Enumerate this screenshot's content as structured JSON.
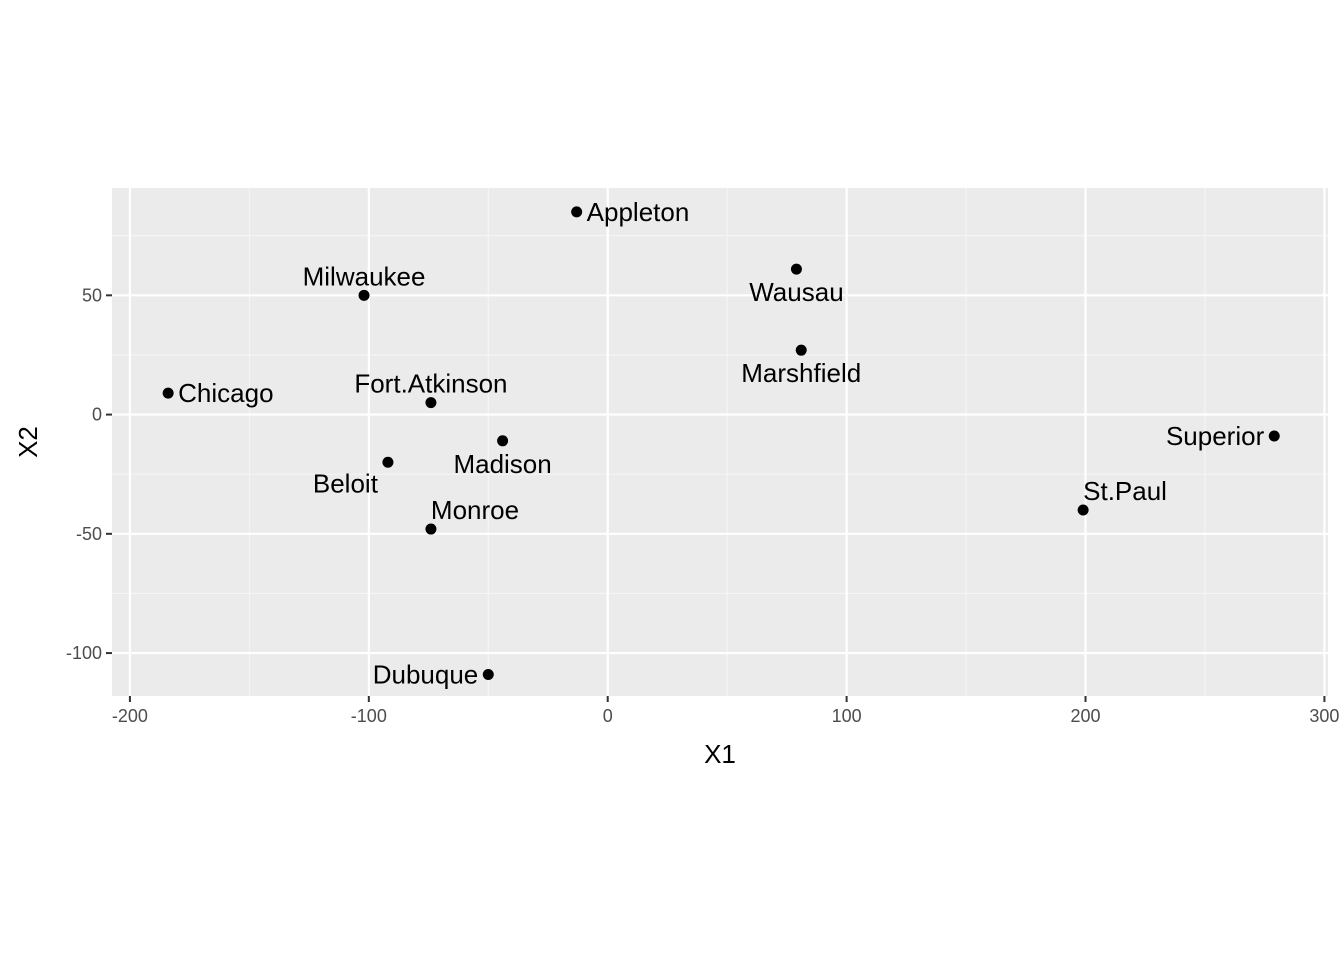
{
  "chart_data": {
    "type": "scatter",
    "title": "",
    "xlabel": "X1",
    "ylabel": "X2",
    "xlim": [
      -207.5,
      301.5
    ],
    "ylim": [
      -118,
      95
    ],
    "x_ticks": [
      -200,
      -100,
      0,
      100,
      200,
      300
    ],
    "x_tick_labels": [
      "-200",
      "-100",
      "0",
      "100",
      "200",
      "300"
    ],
    "y_ticks": [
      -100,
      -50,
      0,
      50
    ],
    "y_tick_labels": [
      "-100",
      "-50",
      "0",
      "50"
    ],
    "grid": true,
    "legend": "none",
    "colors": {
      "panel_background": "#EBEBEB",
      "grid_major": "#FFFFFF",
      "grid_minor": "#F5F5F5",
      "point": "#000000",
      "tick_text": "#4D4D4D",
      "axis_tick": "#333333"
    },
    "points": [
      {
        "label": "Appleton",
        "x": -13,
        "y": 85,
        "anchor": "start",
        "pos": "right"
      },
      {
        "label": "Milwaukee",
        "x": -102,
        "y": 50,
        "anchor": "middle",
        "pos": "above"
      },
      {
        "label": "Wausau",
        "x": 79,
        "y": 61,
        "anchor": "middle",
        "pos": "below"
      },
      {
        "label": "Marshfield",
        "x": 81,
        "y": 27,
        "anchor": "middle",
        "pos": "below"
      },
      {
        "label": "Chicago",
        "x": -184,
        "y": 9,
        "anchor": "start",
        "pos": "right"
      },
      {
        "label": "Fort.Atkinson",
        "x": -74,
        "y": 5,
        "anchor": "middle",
        "pos": "above"
      },
      {
        "label": "Madison",
        "x": -44,
        "y": -11,
        "anchor": "middle",
        "pos": "below"
      },
      {
        "label": "Beloit",
        "x": -92,
        "y": -20,
        "anchor": "end",
        "pos": "below-left"
      },
      {
        "label": "Monroe",
        "x": -74,
        "y": -48,
        "anchor": "start",
        "pos": "above"
      },
      {
        "label": "Superior",
        "x": 279,
        "y": -9,
        "anchor": "end",
        "pos": "left"
      },
      {
        "label": "St.Paul",
        "x": 199,
        "y": -40,
        "anchor": "start",
        "pos": "above"
      },
      {
        "label": "Dubuque",
        "x": -50,
        "y": -109,
        "anchor": "end",
        "pos": "left"
      }
    ]
  }
}
